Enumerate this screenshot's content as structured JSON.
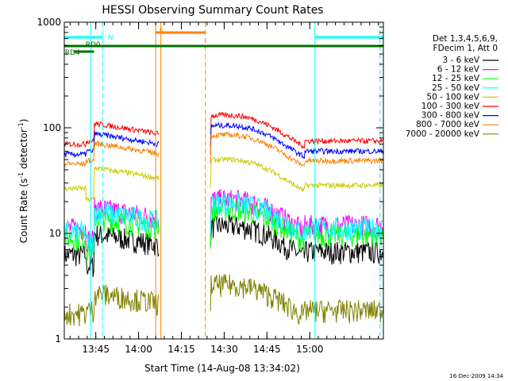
{
  "chart_data": {
    "type": "line",
    "title": "HESSI Observing Summary Count Rates",
    "xlabel": "Start Time (14-Aug-08 13:34:02)",
    "ylabel_main": "Count Rate (s",
    "ylabel_sup1": "-1",
    "ylabel_mid": " detector",
    "ylabel_sup2": "-1",
    "ylabel_end": ")",
    "yscale": "log",
    "ylim": [
      1,
      1000
    ],
    "xlim_minutes": [
      13.566,
      15.43
    ],
    "xticks": [
      {
        "value": 13.75,
        "label": "13:45"
      },
      {
        "value": 14.0,
        "label": "14:00"
      },
      {
        "value": 14.25,
        "label": "14:15"
      },
      {
        "value": 14.5,
        "label": "14:30"
      },
      {
        "value": 14.75,
        "label": "14:45"
      },
      {
        "value": 15.0,
        "label": "15:00"
      }
    ],
    "yticks": [
      {
        "value": 1,
        "label": "1"
      },
      {
        "value": 10,
        "label": "10"
      },
      {
        "value": 100,
        "label": "100"
      },
      {
        "value": 1000,
        "label": "1000"
      }
    ],
    "legend_header": [
      "Det 1,3,4,5,6,9,",
      "FDecim 1, Att 0"
    ],
    "series": [
      {
        "name": "3 - 6 keV",
        "color": "#000000",
        "level": 9
      },
      {
        "name": "6 - 12 keV",
        "color": "#ff00ff",
        "level": 16
      },
      {
        "name": "12 - 25 keV",
        "color": "#00ff00",
        "level": 13
      },
      {
        "name": "25 - 50 keV",
        "color": "#00ffff",
        "level": 15
      },
      {
        "name": "50 - 100 keV",
        "color": "#cccc00",
        "level": 38
      },
      {
        "name": "100 - 300 keV",
        "color": "#ff0000",
        "level": 100
      },
      {
        "name": "300 - 800 keV",
        "color": "#0000ff",
        "level": 80
      },
      {
        "name": "800 - 7000 keV",
        "color": "#ff8000",
        "level": 65
      },
      {
        "name": "7000 - 20000 keV",
        "color": "#808000",
        "level": 2.5
      }
    ],
    "annotations": [
      {
        "text": "N",
        "color": "#00ffff"
      },
      {
        "text": "S",
        "color": "#ff8000"
      },
      {
        "text": "RD0",
        "color": "#007000"
      },
      {
        "text": "RD4",
        "color": "#007000"
      }
    ],
    "timestamp": "16-Dec-2009 14:34"
  }
}
